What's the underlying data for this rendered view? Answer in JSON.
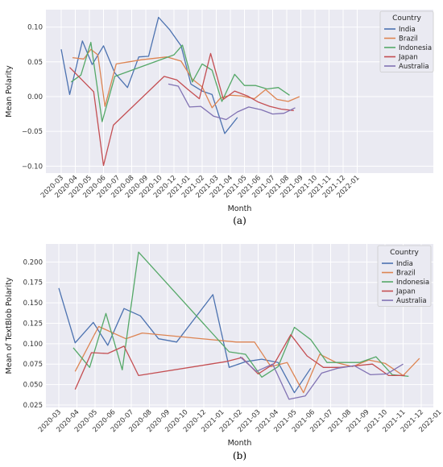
{
  "chart_data": [
    {
      "type": "line",
      "caption": "(a)",
      "xlabel": "Month",
      "ylabel": "Mean Polarity",
      "ylim": [
        -0.11,
        0.125
      ],
      "yticks": [
        -0.1,
        -0.05,
        0.0,
        0.05,
        0.1
      ],
      "ytick_labels": [
        "−0.10",
        "−0.05",
        "0.00",
        "0.05",
        "0.10"
      ],
      "grid": true,
      "legend_title": "Country",
      "legend_position": "top-right",
      "categories": [
        "2020-03",
        "2020-04",
        "2020-05",
        "2020-06",
        "2020-07",
        "2020-08",
        "2020-09",
        "2020-10",
        "2020-12",
        "2021-01",
        "2021-02",
        "2021-03",
        "2021-04",
        "2021-05",
        "2021-06",
        "2021-07",
        "2021-08",
        "2021-09",
        "2021-10",
        "2021-11",
        "2021-12",
        "2022-01"
      ],
      "series": [
        {
          "name": "India",
          "color": "#4c72b0",
          "points": [
            [
              0,
              0.068
            ],
            [
              0.6,
              0.003
            ],
            [
              1.5,
              0.08
            ],
            [
              2.2,
              0.046
            ],
            [
              3.0,
              0.073
            ],
            [
              3.8,
              0.034
            ],
            [
              4.7,
              0.013
            ],
            [
              5.5,
              0.057
            ],
            [
              6.2,
              0.058
            ],
            [
              6.9,
              0.114
            ],
            [
              7.7,
              0.096
            ],
            [
              8.5,
              0.073
            ],
            [
              9.2,
              0.018
            ],
            [
              10.0,
              0.008
            ],
            [
              10.7,
              0.003
            ],
            [
              11.6,
              -0.053
            ],
            [
              12.5,
              -0.03
            ]
          ]
        },
        {
          "name": "Brazil",
          "color": "#dd8452",
          "points": [
            [
              0.8,
              0.056
            ],
            [
              1.6,
              0.054
            ],
            [
              2.1,
              0.068
            ],
            [
              2.6,
              0.06
            ],
            [
              3.1,
              -0.014
            ],
            [
              3.9,
              0.047
            ],
            [
              4.8,
              0.05
            ],
            [
              5.7,
              0.053
            ],
            [
              7.5,
              0.057
            ],
            [
              8.5,
              0.051
            ],
            [
              9.3,
              0.025
            ],
            [
              10.0,
              0.014
            ],
            [
              10.7,
              -0.016
            ],
            [
              11.3,
              -0.002
            ],
            [
              12.0,
              0.002
            ],
            [
              12.8,
              0.001
            ],
            [
              13.7,
              -0.003
            ],
            [
              14.5,
              0.01
            ],
            [
              15.3,
              -0.004
            ],
            [
              16.1,
              -0.007
            ],
            [
              16.9,
              0.0
            ]
          ]
        },
        {
          "name": "Indonesia",
          "color": "#55a868",
          "points": [
            [
              0.7,
              0.021
            ],
            [
              1.4,
              0.031
            ],
            [
              2.1,
              0.078
            ],
            [
              2.9,
              -0.036
            ],
            [
              3.8,
              0.029
            ],
            [
              8.0,
              0.06
            ],
            [
              8.6,
              0.074
            ],
            [
              9.3,
              0.021
            ],
            [
              10.0,
              0.047
            ],
            [
              10.7,
              0.038
            ],
            [
              11.4,
              -0.007
            ],
            [
              12.3,
              0.032
            ],
            [
              13.0,
              0.016
            ],
            [
              13.8,
              0.016
            ],
            [
              14.6,
              0.011
            ],
            [
              15.4,
              0.013
            ],
            [
              16.2,
              0.002
            ]
          ]
        },
        {
          "name": "Japan",
          "color": "#c44e52",
          "points": [
            [
              0.6,
              0.042
            ],
            [
              2.3,
              0.007
            ],
            [
              3.0,
              -0.099
            ],
            [
              3.7,
              -0.041
            ],
            [
              7.3,
              0.029
            ],
            [
              8.2,
              0.024
            ],
            [
              9.0,
              0.01
            ],
            [
              9.8,
              -0.003
            ],
            [
              10.6,
              0.062
            ],
            [
              11.5,
              -0.004
            ],
            [
              12.3,
              0.008
            ],
            [
              13.2,
              0.001
            ],
            [
              14.0,
              -0.008
            ],
            [
              14.8,
              -0.014
            ],
            [
              15.6,
              -0.018
            ],
            [
              16.5,
              -0.02
            ]
          ]
        },
        {
          "name": "Australia",
          "color": "#8172b3",
          "points": [
            [
              7.6,
              0.018
            ],
            [
              8.3,
              0.015
            ],
            [
              9.1,
              -0.015
            ],
            [
              9.9,
              -0.014
            ],
            [
              10.8,
              -0.028
            ],
            [
              11.7,
              -0.033
            ],
            [
              12.5,
              -0.022
            ],
            [
              13.3,
              -0.015
            ],
            [
              14.2,
              -0.019
            ],
            [
              15.0,
              -0.025
            ],
            [
              15.8,
              -0.024
            ],
            [
              16.6,
              -0.016
            ]
          ]
        }
      ]
    },
    {
      "type": "line",
      "caption": "(b)",
      "xlabel": "Month",
      "ylabel": "Mean of TextBlob Polarity",
      "ylim": [
        0.022,
        0.222
      ],
      "yticks": [
        0.025,
        0.05,
        0.075,
        0.1,
        0.125,
        0.15,
        0.175,
        0.2
      ],
      "ytick_labels": [
        "0.025",
        "0.050",
        "0.075",
        "0.100",
        "0.125",
        "0.150",
        "0.175",
        "0.200"
      ],
      "grid": true,
      "legend_title": "Country",
      "legend_position": "top-right",
      "categories": [
        "2020-03",
        "2020-04",
        "2020-05",
        "2020-06",
        "2020-07",
        "2020-08",
        "2020-09",
        "2020-10",
        "2020-12",
        "2021-01",
        "2021-02",
        "2021-03",
        "2021-04",
        "2021-05",
        "2021-06",
        "2021-07",
        "2021-08",
        "2021-09",
        "2021-10",
        "2021-11",
        "2021-12",
        "2022-01"
      ],
      "series": [
        {
          "name": "India",
          "color": "#4c72b0",
          "points": [
            [
              0,
              0.168
            ],
            [
              0.9,
              0.101
            ],
            [
              1.9,
              0.126
            ],
            [
              2.7,
              0.098
            ],
            [
              3.6,
              0.143
            ],
            [
              4.5,
              0.134
            ],
            [
              5.5,
              0.106
            ],
            [
              6.5,
              0.102
            ],
            [
              7.5,
              0.131
            ],
            [
              8.5,
              0.16
            ],
            [
              9.4,
              0.071
            ],
            [
              10.3,
              0.078
            ],
            [
              11.2,
              0.081
            ],
            [
              12.1,
              0.077
            ],
            [
              13.0,
              0.04
            ],
            [
              13.9,
              0.07
            ]
          ]
        },
        {
          "name": "Brazil",
          "color": "#dd8452",
          "points": [
            [
              0.9,
              0.066
            ],
            [
              2.2,
              0.121
            ],
            [
              3.7,
              0.106
            ],
            [
              4.6,
              0.113
            ],
            [
              9.8,
              0.102
            ],
            [
              10.8,
              0.102
            ],
            [
              11.7,
              0.072
            ],
            [
              12.6,
              0.077
            ],
            [
              13.5,
              0.04
            ],
            [
              14.4,
              0.087
            ],
            [
              15.3,
              0.077
            ],
            [
              16.2,
              0.072
            ],
            [
              17.1,
              0.08
            ],
            [
              18.0,
              0.076
            ],
            [
              19.0,
              0.061
            ],
            [
              19.9,
              0.082
            ]
          ]
        },
        {
          "name": "Indonesia",
          "color": "#55a868",
          "points": [
            [
              0.8,
              0.095
            ],
            [
              1.7,
              0.071
            ],
            [
              2.6,
              0.137
            ],
            [
              3.5,
              0.068
            ],
            [
              4.4,
              0.212
            ],
            [
              9.4,
              0.09
            ],
            [
              10.3,
              0.087
            ],
            [
              11.2,
              0.059
            ],
            [
              12.1,
              0.072
            ],
            [
              13.0,
              0.12
            ],
            [
              13.9,
              0.105
            ],
            [
              14.8,
              0.077
            ],
            [
              15.7,
              0.077
            ],
            [
              16.6,
              0.077
            ],
            [
              17.5,
              0.084
            ],
            [
              18.4,
              0.062
            ],
            [
              19.3,
              0.06
            ]
          ]
        },
        {
          "name": "Japan",
          "color": "#c44e52",
          "points": [
            [
              0.9,
              0.044
            ],
            [
              1.8,
              0.089
            ],
            [
              2.7,
              0.088
            ],
            [
              3.6,
              0.097
            ],
            [
              4.4,
              0.061
            ],
            [
              9.2,
              0.078
            ],
            [
              10.1,
              0.083
            ],
            [
              11.0,
              0.063
            ],
            [
              11.9,
              0.076
            ],
            [
              12.8,
              0.111
            ],
            [
              13.7,
              0.085
            ],
            [
              14.6,
              0.071
            ],
            [
              15.5,
              0.071
            ],
            [
              16.4,
              0.073
            ],
            [
              17.3,
              0.075
            ],
            [
              18.2,
              0.061
            ],
            [
              19.1,
              0.061
            ]
          ]
        },
        {
          "name": "Australia",
          "color": "#8172b3",
          "points": [
            [
              10.0,
              0.084
            ],
            [
              10.9,
              0.066
            ],
            [
              11.8,
              0.075
            ],
            [
              12.7,
              0.032
            ],
            [
              13.6,
              0.036
            ],
            [
              14.5,
              0.064
            ],
            [
              15.4,
              0.07
            ],
            [
              16.3,
              0.073
            ],
            [
              17.2,
              0.062
            ],
            [
              18.1,
              0.063
            ],
            [
              19.0,
              0.075
            ]
          ]
        }
      ]
    }
  ]
}
